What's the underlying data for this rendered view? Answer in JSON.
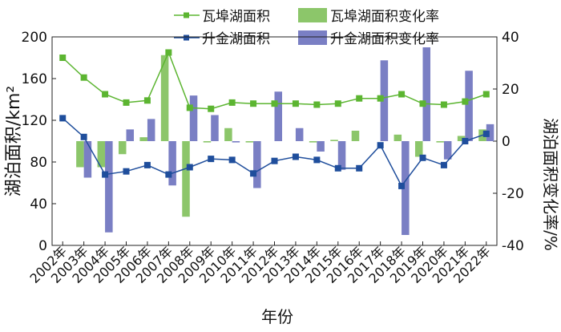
{
  "chart_data": {
    "type": "bar+line",
    "title": "",
    "categories": [
      "2002年",
      "2003年",
      "2004年",
      "2005年",
      "2006年",
      "2007年",
      "2008年",
      "2009年",
      "2010年",
      "2011年",
      "2012年",
      "2013年",
      "2014年",
      "2015年",
      "2016年",
      "2017年",
      "2018年",
      "2019年",
      "2020年",
      "2021年",
      "2022年"
    ],
    "xlabel": "年份",
    "ylabel_left": "湖泊面积/km²",
    "ylabel_right": "湖泊面积变化率/%",
    "ylim_left": [
      0,
      200
    ],
    "ylim_right": [
      -40,
      40
    ],
    "yticks_left": [
      "0",
      "40",
      "80",
      "120",
      "160",
      "200"
    ],
    "yticks_right": [
      "-40",
      "-20",
      "0",
      "20",
      "40"
    ],
    "series": [
      {
        "name": "瓦埠湖面积",
        "kind": "line",
        "axis": "left",
        "color": "#5cb531",
        "values": [
          180,
          161,
          145,
          137,
          139,
          185,
          132,
          131,
          137,
          136,
          136,
          136,
          135,
          136,
          141,
          141,
          145,
          136,
          135,
          138,
          145
        ]
      },
      {
        "name": "升金湖面积",
        "kind": "line",
        "axis": "left",
        "color": "#1f4e9c",
        "values": [
          122,
          104,
          68,
          71,
          77,
          68,
          75,
          83,
          82,
          69,
          81,
          85,
          82,
          74,
          74,
          96,
          57,
          84,
          77,
          100,
          107
        ]
      },
      {
        "name": "瓦埠湖面积变化率",
        "kind": "bar",
        "axis": "right",
        "color": "#8cc66a",
        "values": [
          0,
          -10,
          -10,
          -5,
          1.5,
          33,
          -29,
          -0.5,
          5,
          -0.5,
          0,
          0,
          -0.5,
          0.5,
          4,
          0,
          2.5,
          -6,
          -0.5,
          2,
          4.5
        ]
      },
      {
        "name": "升金湖面积变化率",
        "kind": "bar",
        "axis": "right",
        "color": "#7a7fc4",
        "values": [
          0,
          -14,
          -35,
          4.5,
          8.5,
          -17,
          17.5,
          10,
          -0.5,
          -18,
          19,
          5,
          -4,
          -11,
          0,
          31,
          -36,
          36,
          -7,
          27,
          6.5
        ]
      }
    ],
    "legend_position": "top",
    "grid": false
  }
}
